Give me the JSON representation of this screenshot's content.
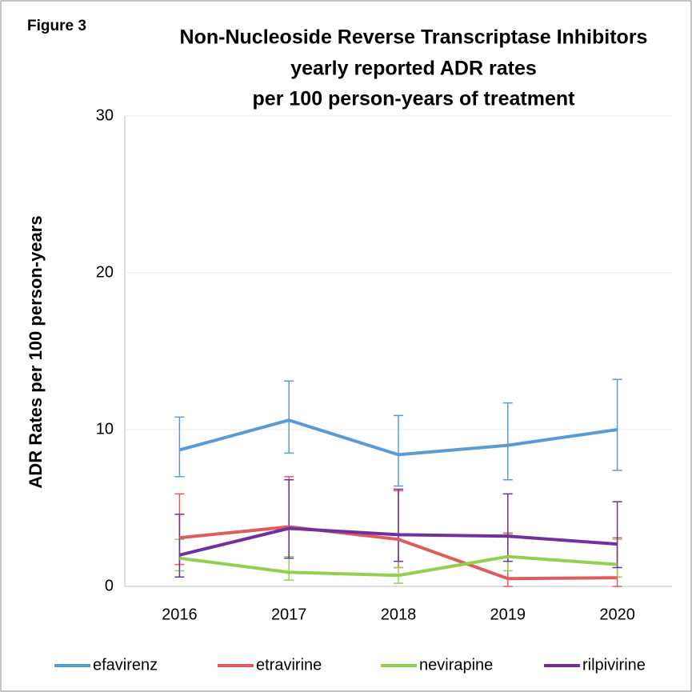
{
  "chart_data": {
    "type": "line",
    "label": "Figure 3",
    "title": [
      "Non-Nucleoside Reverse Transcriptase Inhibitors",
      "yearly reported ADR rates",
      "per 100 person-years of treatment"
    ],
    "y_label": "ADR Rates per 100 person-years",
    "categories": [
      "2016",
      "2017",
      "2018",
      "2019",
      "2020"
    ],
    "ylim": [
      0,
      30
    ],
    "yticks": [
      0,
      10,
      20,
      30
    ],
    "grid": true,
    "legend": "bottom",
    "series": [
      {
        "name": "efavirenz",
        "color": "#5b9bd5",
        "values": [
          8.7,
          10.6,
          8.4,
          9.0,
          10.0
        ],
        "lower": [
          7.0,
          8.5,
          6.4,
          6.8,
          7.4
        ],
        "upper": [
          10.8,
          13.1,
          10.9,
          11.7,
          13.2
        ]
      },
      {
        "name": "etravirine",
        "color": "#e05b5b",
        "values": [
          3.1,
          3.8,
          3.0,
          0.5,
          0.55
        ],
        "lower": [
          1.4,
          1.9,
          1.2,
          0.0,
          0.0
        ],
        "upper": [
          5.9,
          7.0,
          6.1,
          3.4,
          3.1
        ]
      },
      {
        "name": "nevirapine",
        "color": "#92d050",
        "values": [
          1.8,
          0.9,
          0.7,
          1.9,
          1.4
        ],
        "lower": [
          1.0,
          0.4,
          0.2,
          1.0,
          0.6
        ],
        "upper": [
          3.0,
          1.9,
          1.2,
          3.3,
          3.0
        ]
      },
      {
        "name": "rilpivirine",
        "color": "#7030a0",
        "values": [
          2.0,
          3.7,
          3.3,
          3.2,
          2.7
        ],
        "lower": [
          0.6,
          1.8,
          1.6,
          1.6,
          1.2
        ],
        "upper": [
          4.6,
          6.8,
          6.2,
          5.9,
          5.4
        ]
      }
    ]
  }
}
